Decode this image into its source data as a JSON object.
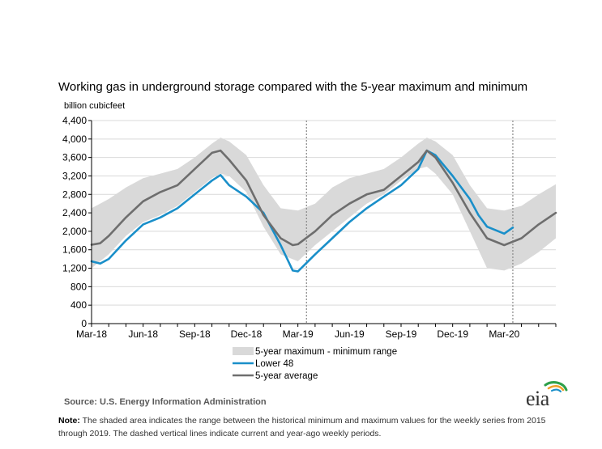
{
  "title": "Working gas in underground  storage compared with the 5-year maximum  and minimum",
  "ylabel": "billion cubicfeet",
  "source": "Source:  U.S. Energy Information Administration",
  "note_label": "Note:",
  "note_text": " The shaded area indicates the range between the historical minimum and maximum values for the weekly series from 2015 through 2019. The dashed vertical lines indicate current and year-ago weekly periods.",
  "logo_text": "eia",
  "colors": {
    "range": "#d9d9d9",
    "lower48": "#1a8fc9",
    "average": "#6e6e6e",
    "axis": "#000000",
    "dashed": "#888888"
  },
  "chart_data": {
    "type": "line",
    "title": "Working gas in underground  storage compared with the 5-year maximum  and minimum",
    "ylabel": "billion cubicfeet",
    "xlabel": "",
    "ylim": [
      0,
      4400
    ],
    "yticks": [
      "0",
      "400",
      "800",
      "1,200",
      "1,600",
      "2,000",
      "2,400",
      "2,800",
      "3,200",
      "3,600",
      "4,000",
      "4,400"
    ],
    "xtick_labels": [
      "Mar-18",
      "Jun-18",
      "Sep-18",
      "Dec-18",
      "Mar-19",
      "Jun-19",
      "Sep-19",
      "Dec-19",
      "Mar-20"
    ],
    "xticks_month_index": [
      0,
      3,
      6,
      9,
      12,
      15,
      18,
      21,
      24
    ],
    "x_unit": "months since Mar-18",
    "x_range": [
      0,
      27
    ],
    "dashed_lines_month_index": [
      12.5,
      24.5
    ],
    "legend_position": "bottom",
    "series": [
      {
        "name": "5-year maximum - minimum range",
        "kind": "band",
        "x": [
          0,
          1,
          2,
          3,
          4,
          5,
          6,
          7,
          7.5,
          8,
          9,
          10,
          11,
          12,
          13,
          14,
          15,
          16,
          17,
          18,
          19,
          19.5,
          20,
          21,
          22,
          23,
          24,
          25,
          26,
          27
        ],
        "max": [
          2500,
          2700,
          2950,
          3150,
          3250,
          3350,
          3600,
          3900,
          4030,
          3950,
          3650,
          3000,
          2500,
          2450,
          2600,
          2950,
          3150,
          3250,
          3350,
          3600,
          3900,
          4030,
          3950,
          3650,
          3000,
          2500,
          2450,
          2550,
          2800,
          3020
        ],
        "min": [
          1200,
          1500,
          1900,
          2200,
          2350,
          2550,
          2850,
          3150,
          3250,
          3200,
          2850,
          2100,
          1500,
          1350,
          1700,
          2000,
          2300,
          2600,
          2800,
          3100,
          3350,
          3400,
          3250,
          2800,
          2000,
          1200,
          1150,
          1300,
          1550,
          1850
        ]
      },
      {
        "name": "Lower 48",
        "kind": "line",
        "x": [
          0,
          0.5,
          1,
          2,
          3,
          4,
          5,
          6,
          7,
          7.5,
          8,
          9,
          10,
          11,
          11.7,
          12,
          13,
          14,
          15,
          16,
          17,
          18,
          19,
          19.5,
          20,
          21,
          22,
          22.5,
          23,
          24,
          24.5
        ],
        "values": [
          1350,
          1300,
          1400,
          1800,
          2150,
          2300,
          2500,
          2800,
          3100,
          3220,
          3000,
          2750,
          2400,
          1700,
          1150,
          1130,
          1500,
          1850,
          2200,
          2500,
          2750,
          3000,
          3350,
          3750,
          3650,
          3200,
          2700,
          2350,
          2100,
          1950,
          2080
        ]
      },
      {
        "name": "5-year average",
        "kind": "line",
        "x": [
          0,
          0.5,
          1,
          2,
          3,
          4,
          5,
          6,
          7,
          7.5,
          8,
          9,
          10,
          11,
          11.7,
          12,
          13,
          14,
          15,
          16,
          17,
          18,
          19,
          19.5,
          20,
          21,
          22,
          23,
          24,
          25,
          26,
          27
        ],
        "values": [
          1710,
          1740,
          1900,
          2300,
          2650,
          2850,
          3000,
          3350,
          3700,
          3750,
          3550,
          3100,
          2350,
          1850,
          1700,
          1720,
          2000,
          2350,
          2600,
          2800,
          2900,
          3200,
          3500,
          3750,
          3600,
          3050,
          2400,
          1850,
          1700,
          1850,
          2150,
          2400
        ]
      }
    ]
  }
}
